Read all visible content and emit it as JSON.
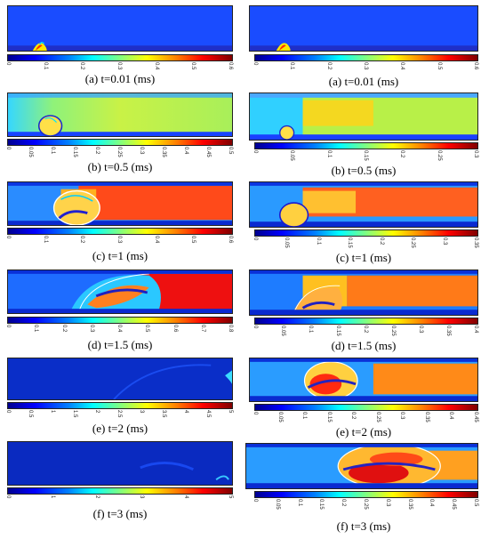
{
  "left": [
    {
      "caption": "(a) t=0.01 (ms)",
      "ticks": [
        "0",
        "0.1",
        "0.2",
        "0.3",
        "0.4",
        "0.5",
        "0.6"
      ]
    },
    {
      "caption": "(b) t=0.5 (ms)",
      "ticks": [
        "0",
        "0.05",
        "0.1",
        "0.15",
        "0.2",
        "0.25",
        "0.3",
        "0.35",
        "0.4",
        "0.45",
        "0.5"
      ]
    },
    {
      "caption": "(c) t=1 (ms)",
      "ticks": [
        "0",
        "0.1",
        "0.2",
        "0.3",
        "0.4",
        "0.5",
        "0.6"
      ]
    },
    {
      "caption": "(d) t=1.5 (ms)",
      "ticks": [
        "0",
        "0.1",
        "0.2",
        "0.3",
        "0.4",
        "0.5",
        "0.6",
        "0.7",
        "0.8"
      ]
    },
    {
      "caption": "(e) t=2 (ms)",
      "ticks": [
        "0",
        "0.5",
        "1",
        "1.5",
        "2",
        "2.5",
        "3",
        "3.5",
        "4",
        "4.5",
        "5"
      ]
    },
    {
      "caption": "(f) t=3 (ms)",
      "ticks": [
        "0",
        "1",
        "2",
        "3",
        "4",
        "5"
      ]
    }
  ],
  "right": [
    {
      "caption": "(a) t=0.01 (ms)",
      "ticks": [
        "0",
        "0.1",
        "0.2",
        "0.3",
        "0.4",
        "0.5",
        "0.6"
      ]
    },
    {
      "caption": "(b) t=0.5 (ms)",
      "ticks": [
        "0",
        "0.05",
        "0.1",
        "0.15",
        "0.2",
        "0.25",
        "0.3"
      ]
    },
    {
      "caption": "(c) t=1 (ms)",
      "ticks": [
        "0",
        "0.05",
        "0.1",
        "0.15",
        "0.2",
        "0.25",
        "0.3",
        "0.35"
      ]
    },
    {
      "caption": "(d) t=1.5 (ms)",
      "ticks": [
        "0",
        "0.05",
        "0.1",
        "0.15",
        "0.2",
        "0.25",
        "0.3",
        "0.35",
        "0.4"
      ]
    },
    {
      "caption": "(e) t=2 (ms)",
      "ticks": [
        "0",
        "0.05",
        "0.1",
        "0.15",
        "0.2",
        "0.25",
        "0.3",
        "0.35",
        "0.4",
        "0.45"
      ]
    },
    {
      "caption": "(f) t=3 (ms)",
      "ticks": [
        "0",
        "0.05",
        "0.1",
        "0.15",
        "0.2",
        "0.25",
        "0.3",
        "0.35",
        "0.4",
        "0.45",
        "0.5"
      ]
    }
  ]
}
